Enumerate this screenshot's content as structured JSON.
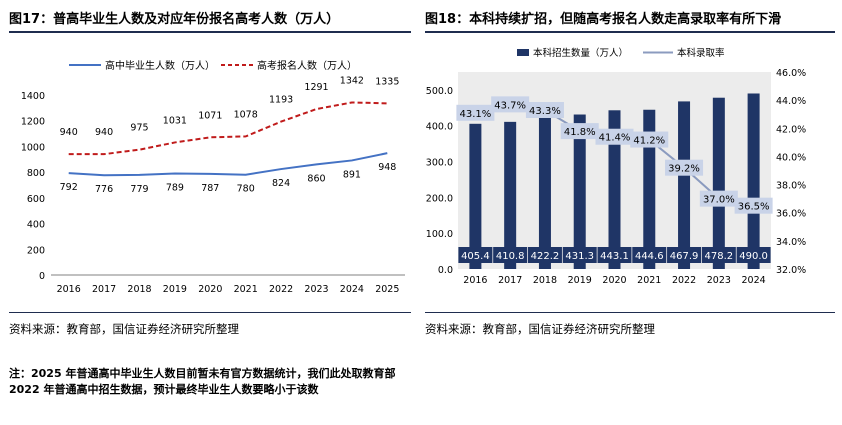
{
  "left": {
    "title": "图17：普高毕业生人数及对应年份报名高考人数（万人）",
    "source": "资料来源：教育部，国信证券经济研究所整理",
    "note": "注：2025 年普通高中毕业生人数目前暂未有官方数据统计，我们此处取教育部 2022 年普通高中招生数据，预计最终毕业生人数要略小于该数"
  },
  "right": {
    "title": "图18：本科持续扩招，但随高考报名人数走高录取率有所下滑",
    "source": "资料来源：教育部，国信证券经济研究所整理"
  },
  "colors": {
    "navy": "#1f3566",
    "red": "#c01b1b",
    "blue": "#4472c4",
    "rate": "#8b9bbf",
    "rule": "#1f2d4f"
  },
  "chart_data": [
    {
      "type": "line",
      "title": "普高毕业生人数及对应年份报名高考人数（万人）",
      "categories": [
        "2016",
        "2017",
        "2018",
        "2019",
        "2020",
        "2021",
        "2022",
        "2023",
        "2024",
        "2025"
      ],
      "series": [
        {
          "name": "高中毕业生人数（万人）",
          "values": [
            792,
            776,
            779,
            789,
            787,
            780,
            824,
            860,
            891,
            948
          ]
        },
        {
          "name": "高考报名人数（万人）",
          "values": [
            940,
            940,
            975,
            1031,
            1071,
            1078,
            1193,
            1291,
            1342,
            1335
          ]
        }
      ],
      "yticks": [
        "0",
        "200",
        "400",
        "600",
        "800",
        "1000",
        "1200",
        "1400"
      ],
      "ylim": [
        0,
        1400
      ]
    },
    {
      "type": "bar",
      "title": "本科持续扩招，但随高考报名人数走高录取率有所下滑",
      "categories": [
        "2016",
        "2017",
        "2018",
        "2019",
        "2020",
        "2021",
        "2022",
        "2023",
        "2024"
      ],
      "series": [
        {
          "name": "本科招生数量（万人）",
          "axis": "left",
          "values": [
            405.4,
            410.8,
            422.2,
            431.3,
            443.1,
            444.6,
            467.9,
            478.2,
            490.0
          ],
          "labels": [
            "405.4",
            "410.8",
            "422.2",
            "431.3",
            "443.1",
            "444.6",
            "467.9",
            "478.2",
            "490.0"
          ]
        },
        {
          "name": "本科录取率",
          "axis": "right",
          "type": "line",
          "values": [
            43.1,
            43.7,
            43.3,
            41.8,
            41.4,
            41.2,
            39.2,
            37.0,
            36.5
          ],
          "labels": [
            "43.1%",
            "43.7%",
            "43.3%",
            "41.8%",
            "41.4%",
            "41.2%",
            "39.2%",
            "37.0%",
            "36.5%"
          ]
        }
      ],
      "yticks_left": [
        "0.0",
        "100.0",
        "200.0",
        "300.0",
        "400.0",
        "500.0"
      ],
      "ylim_left": [
        0,
        550
      ],
      "yticks_right": [
        "32.0%",
        "34.0%",
        "36.0%",
        "38.0%",
        "40.0%",
        "42.0%",
        "44.0%",
        "46.0%"
      ],
      "ylim_right": [
        32,
        46
      ]
    }
  ]
}
